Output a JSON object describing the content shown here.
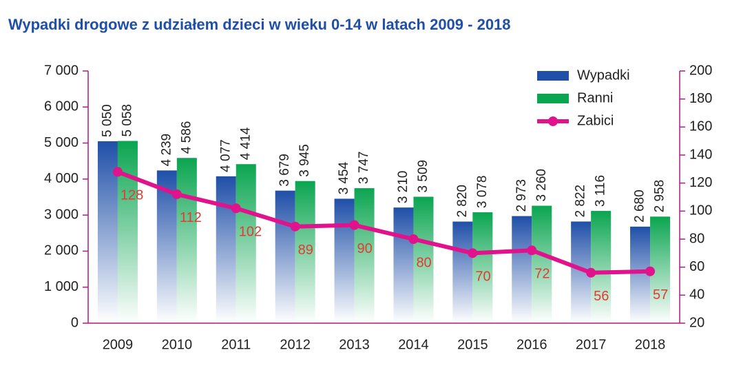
{
  "chart_data": {
    "type": "bar-line",
    "title": "Wypadki drogowe z udziałem dzieci w wieku 0-14 w latach 2009 - 2018",
    "categories": [
      "2009",
      "2010",
      "2011",
      "2012",
      "2013",
      "2014",
      "2015",
      "2016",
      "2017",
      "2018"
    ],
    "series": [
      {
        "name": "Wypadki",
        "color": "#1f4fa8",
        "type": "bar",
        "values": [
          5050,
          4239,
          4077,
          3679,
          3454,
          3210,
          2820,
          2973,
          2822,
          2680
        ],
        "value_labels": [
          "5 050",
          "4 239",
          "4 077",
          "3 679",
          "3 454",
          "3 210",
          "2 820",
          "2 973",
          "2 822",
          "2 680"
        ]
      },
      {
        "name": "Ranni",
        "color": "#0aa550",
        "type": "bar",
        "values": [
          5058,
          4586,
          4414,
          3945,
          3747,
          3509,
          3078,
          3260,
          3116,
          2958
        ],
        "value_labels": [
          "5 058",
          "4 586",
          "4 414",
          "3 945",
          "3 747",
          "3 509",
          "3 078",
          "3 260",
          "3 116",
          "2 958"
        ]
      },
      {
        "name": "Zabici",
        "color": "#e0128c",
        "type": "line",
        "axis": "y2",
        "label_color": "#e03c31",
        "values": [
          128,
          112,
          102,
          89,
          90,
          80,
          70,
          72,
          56,
          57
        ]
      }
    ],
    "ylim": [
      0,
      7000
    ],
    "yticks": [
      0,
      {
        "value": 1000,
        "label": "1 000"
      },
      {
        "value": 2000,
        "label": "2 000"
      },
      {
        "value": 3000,
        "label": "3 000"
      },
      {
        "value": 4000,
        "label": "4 000"
      },
      {
        "value": 5000,
        "label": "5 000"
      },
      {
        "value": 6000,
        "label": "6 000"
      },
      {
        "value": 7000,
        "label": "7 000"
      }
    ],
    "y2lim": [
      20,
      200
    ],
    "y2ticks": [
      20,
      40,
      60,
      80,
      100,
      120,
      140,
      160,
      180,
      200
    ],
    "legend": "top-right"
  }
}
